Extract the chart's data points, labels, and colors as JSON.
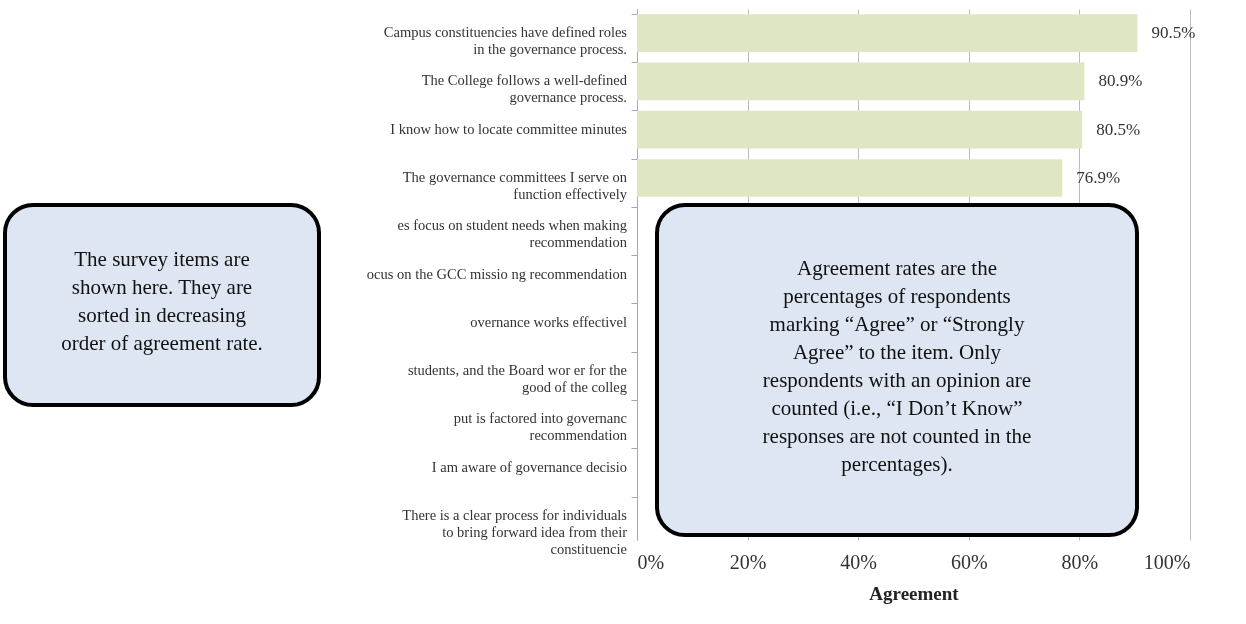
{
  "chart_data": {
    "type": "bar",
    "orientation": "horizontal",
    "xlabel": "Agreement",
    "categories": [
      "Campus constituencies have defined roles in the governance process.",
      "The College follows a well-defined governance process.",
      "I know how to locate committee minutes",
      "The governance committees I serve on function effectively",
      "es focus on student needs when making recommendation",
      "ocus on the GCC missio ng recommendation",
      "overnance works effectivel",
      "students, and the Board wor er for the good of the colleg",
      "put is factored into governanc recommendation",
      "I am aware of governance decisio",
      "There is a clear process for individuals to bring forward idea from their constituencie"
    ],
    "values": [
      90.5,
      80.9,
      80.5,
      76.9,
      null,
      null,
      null,
      null,
      null,
      null,
      null
    ],
    "value_labels": [
      "90.5%",
      "80.9%",
      "80.5%",
      "76.9%",
      null,
      null,
      null,
      null,
      null,
      null,
      null
    ],
    "color": "#dfe6c4",
    "xlim": [
      0,
      100
    ],
    "xticks": [
      {
        "value": 0,
        "label": "0%"
      },
      {
        "value": 20,
        "label": "20%"
      },
      {
        "value": 40,
        "label": "40%"
      },
      {
        "value": 60,
        "label": "60%"
      },
      {
        "value": 80,
        "label": "80%"
      },
      {
        "value": 100,
        "label": "100%"
      }
    ],
    "grid": "x",
    "annotations": [
      "The survey items are shown here. They are sorted in decreasing order of agreement rate.",
      "Agreement rates are the percentages of respondents marking “Agree” or “Strongly Agree” to the item. Only respondents with an opinion are counted (i.e., “I Don’t Know” responses are not counted in the percentages)."
    ]
  }
}
